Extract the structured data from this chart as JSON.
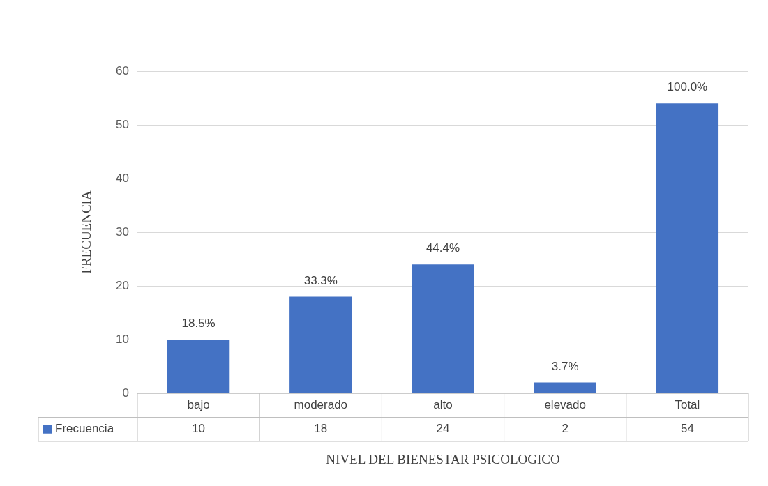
{
  "chart_data": {
    "type": "bar",
    "xlabel": "NIVEL DEL BIENESTAR PSICOLOGICO",
    "ylabel": "FRECUENCIA",
    "categories": [
      "bajo",
      "moderado",
      "alto",
      "elevado",
      "Total"
    ],
    "series": [
      {
        "name": "Frecuencia",
        "color": "#4472c4",
        "values": [
          10,
          18,
          24,
          2,
          54
        ],
        "value_labels": [
          "10",
          "18",
          "24",
          "2",
          "54"
        ]
      }
    ],
    "annotations": [
      {
        "text": "18.5%",
        "x": "bajo",
        "y": 10
      },
      {
        "text": "33.3%",
        "x": "moderado",
        "y": 18
      },
      {
        "text": "44.4%",
        "x": "alto",
        "y": 24
      },
      {
        "text": "3.7%",
        "x": "elevado",
        "y": 2
      },
      {
        "text": "100.0%",
        "x": "Total",
        "y": 54
      }
    ],
    "ylim": [
      0,
      60
    ],
    "yticks": [
      0,
      10,
      20,
      30,
      40,
      50,
      60
    ],
    "grid": "y",
    "legend": "bottom"
  }
}
